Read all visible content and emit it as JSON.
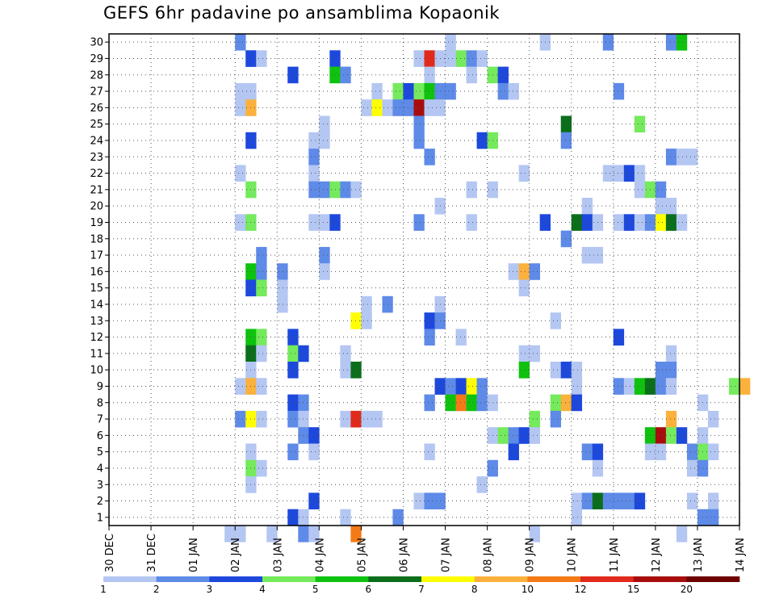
{
  "chart_data": {
    "type": "heatmap",
    "title": "GEFS 6hr padavine po ansamblima Kopaonik",
    "xlabel": "",
    "ylabel": "",
    "x_tick_labels": [
      "30 DEC",
      "31 DEC",
      "01 JAN",
      "02 JAN",
      "03 JAN",
      "04 JAN",
      "05 JAN",
      "06 JAN",
      "07 JAN",
      "08 JAN",
      "09 JAN",
      "10 JAN",
      "11 JAN",
      "12 JAN",
      "13 JAN",
      "14 JAN"
    ],
    "y_tick_labels": [
      "1",
      "2",
      "3",
      "4",
      "5",
      "6",
      "7",
      "8",
      "9",
      "10",
      "11",
      "12",
      "13",
      "14",
      "15",
      "16",
      "17",
      "18",
      "19",
      "20",
      "21",
      "22",
      "23",
      "24",
      "25",
      "26",
      "27",
      "28",
      "29",
      "30"
    ],
    "xlim_steps": [
      0,
      60
    ],
    "ylim": [
      0,
      30
    ],
    "grid": true,
    "step_hours": 6,
    "legend": {
      "position": "bottom",
      "levels": [
        "1",
        "2",
        "3",
        "4",
        "5",
        "6",
        "7",
        "8",
        "10",
        "12",
        "15",
        "20"
      ],
      "colors": [
        "#b4c6f2",
        "#5e8ae8",
        "#1d48dc",
        "#74ea5c",
        "#0ec20e",
        "#0b6e1b",
        "#ffff00",
        "#fbb13c",
        "#f47a17",
        "#e12a1b",
        "#a80d0d",
        "#6e0000"
      ]
    },
    "cells": [
      [
        12,
        30,
        2
      ],
      [
        32,
        30,
        1
      ],
      [
        41,
        30,
        1
      ],
      [
        47,
        30,
        2
      ],
      [
        53,
        30,
        2
      ],
      [
        54,
        30,
        5
      ],
      [
        13,
        29,
        3
      ],
      [
        14,
        29,
        1
      ],
      [
        21,
        29,
        3
      ],
      [
        29,
        29,
        1
      ],
      [
        30,
        29,
        10
      ],
      [
        31,
        29,
        1
      ],
      [
        32,
        29,
        1
      ],
      [
        33,
        29,
        4
      ],
      [
        34,
        29,
        2
      ],
      [
        35,
        29,
        1
      ],
      [
        17,
        28,
        3
      ],
      [
        21,
        28,
        5
      ],
      [
        22,
        28,
        2
      ],
      [
        30,
        28,
        1
      ],
      [
        34,
        28,
        1
      ],
      [
        36,
        28,
        4
      ],
      [
        37,
        28,
        3
      ],
      [
        12,
        27,
        1
      ],
      [
        13,
        27,
        1
      ],
      [
        25,
        27,
        1
      ],
      [
        27,
        27,
        4
      ],
      [
        28,
        27,
        3
      ],
      [
        29,
        27,
        4
      ],
      [
        30,
        27,
        5
      ],
      [
        31,
        27,
        2
      ],
      [
        32,
        27,
        2
      ],
      [
        37,
        27,
        2
      ],
      [
        38,
        27,
        1
      ],
      [
        48,
        27,
        2
      ],
      [
        12,
        26,
        1
      ],
      [
        13,
        26,
        8
      ],
      [
        24,
        26,
        1
      ],
      [
        25,
        26,
        7
      ],
      [
        26,
        26,
        1
      ],
      [
        27,
        26,
        2
      ],
      [
        28,
        26,
        2
      ],
      [
        29,
        26,
        11
      ],
      [
        30,
        26,
        1
      ],
      [
        31,
        26,
        1
      ],
      [
        20,
        25,
        1
      ],
      [
        29,
        25,
        2
      ],
      [
        43,
        25,
        6
      ],
      [
        50,
        25,
        4
      ],
      [
        13,
        24,
        3
      ],
      [
        19,
        24,
        1
      ],
      [
        20,
        24,
        1
      ],
      [
        29,
        24,
        2
      ],
      [
        35,
        24,
        3
      ],
      [
        36,
        24,
        4
      ],
      [
        43,
        24,
        2
      ],
      [
        19,
        23,
        2
      ],
      [
        30,
        23,
        2
      ],
      [
        53,
        23,
        2
      ],
      [
        54,
        23,
        1
      ],
      [
        55,
        23,
        1
      ],
      [
        12,
        22,
        1
      ],
      [
        19,
        22,
        1
      ],
      [
        39,
        22,
        1
      ],
      [
        47,
        22,
        1
      ],
      [
        48,
        22,
        1
      ],
      [
        49,
        22,
        3
      ],
      [
        50,
        22,
        1
      ],
      [
        13,
        21,
        4
      ],
      [
        19,
        21,
        2
      ],
      [
        20,
        21,
        2
      ],
      [
        21,
        21,
        4
      ],
      [
        22,
        21,
        2
      ],
      [
        23,
        21,
        1
      ],
      [
        34,
        21,
        1
      ],
      [
        36,
        21,
        1
      ],
      [
        50,
        21,
        1
      ],
      [
        51,
        21,
        4
      ],
      [
        52,
        21,
        2
      ],
      [
        31,
        20,
        1
      ],
      [
        45,
        20,
        1
      ],
      [
        52,
        20,
        1
      ],
      [
        53,
        20,
        1
      ],
      [
        12,
        19,
        1
      ],
      [
        13,
        19,
        4
      ],
      [
        19,
        19,
        1
      ],
      [
        20,
        19,
        1
      ],
      [
        21,
        19,
        3
      ],
      [
        29,
        19,
        2
      ],
      [
        34,
        19,
        1
      ],
      [
        41,
        19,
        3
      ],
      [
        44,
        19,
        6
      ],
      [
        45,
        19,
        3
      ],
      [
        46,
        19,
        1
      ],
      [
        48,
        19,
        1
      ],
      [
        49,
        19,
        3
      ],
      [
        50,
        19,
        1
      ],
      [
        51,
        19,
        2
      ],
      [
        52,
        19,
        7
      ],
      [
        53,
        19,
        6
      ],
      [
        54,
        19,
        1
      ],
      [
        43,
        18,
        2
      ],
      [
        14,
        17,
        2
      ],
      [
        20,
        17,
        2
      ],
      [
        45,
        17,
        1
      ],
      [
        46,
        17,
        1
      ],
      [
        13,
        16,
        5
      ],
      [
        14,
        16,
        2
      ],
      [
        16,
        16,
        2
      ],
      [
        20,
        16,
        1
      ],
      [
        38,
        16,
        1
      ],
      [
        39,
        16,
        8
      ],
      [
        40,
        16,
        2
      ],
      [
        13,
        15,
        3
      ],
      [
        14,
        15,
        4
      ],
      [
        16,
        15,
        1
      ],
      [
        39,
        15,
        1
      ],
      [
        16,
        14,
        1
      ],
      [
        24,
        14,
        1
      ],
      [
        26,
        14,
        2
      ],
      [
        31,
        14,
        1
      ],
      [
        23,
        13,
        7
      ],
      [
        24,
        13,
        1
      ],
      [
        30,
        13,
        3
      ],
      [
        31,
        13,
        2
      ],
      [
        42,
        13,
        1
      ],
      [
        13,
        12,
        5
      ],
      [
        14,
        12,
        4
      ],
      [
        17,
        12,
        3
      ],
      [
        30,
        12,
        2
      ],
      [
        33,
        12,
        1
      ],
      [
        48,
        12,
        3
      ],
      [
        13,
        11,
        6
      ],
      [
        14,
        11,
        1
      ],
      [
        17,
        11,
        4
      ],
      [
        18,
        11,
        3
      ],
      [
        22,
        11,
        1
      ],
      [
        39,
        11,
        1
      ],
      [
        40,
        11,
        1
      ],
      [
        53,
        11,
        1
      ],
      [
        13,
        10,
        1
      ],
      [
        17,
        10,
        3
      ],
      [
        22,
        10,
        1
      ],
      [
        23,
        10,
        6
      ],
      [
        39,
        10,
        5
      ],
      [
        42,
        10,
        1
      ],
      [
        43,
        10,
        3
      ],
      [
        44,
        10,
        1
      ],
      [
        52,
        10,
        2
      ],
      [
        53,
        10,
        2
      ],
      [
        12,
        9,
        1
      ],
      [
        13,
        9,
        8
      ],
      [
        14,
        9,
        1
      ],
      [
        31,
        9,
        3
      ],
      [
        32,
        9,
        2
      ],
      [
        33,
        9,
        3
      ],
      [
        34,
        9,
        7
      ],
      [
        35,
        9,
        2
      ],
      [
        44,
        9,
        1
      ],
      [
        48,
        9,
        2
      ],
      [
        49,
        9,
        1
      ],
      [
        50,
        9,
        5
      ],
      [
        51,
        9,
        6
      ],
      [
        52,
        9,
        2
      ],
      [
        53,
        9,
        1
      ],
      [
        59,
        9,
        4
      ],
      [
        60,
        9,
        8
      ],
      [
        17,
        8,
        3
      ],
      [
        18,
        8,
        2
      ],
      [
        30,
        8,
        2
      ],
      [
        32,
        8,
        5
      ],
      [
        33,
        8,
        9
      ],
      [
        34,
        8,
        5
      ],
      [
        35,
        8,
        2
      ],
      [
        36,
        8,
        1
      ],
      [
        42,
        8,
        4
      ],
      [
        43,
        8,
        8
      ],
      [
        44,
        8,
        3
      ],
      [
        56,
        8,
        1
      ],
      [
        12,
        7,
        2
      ],
      [
        13,
        7,
        7
      ],
      [
        14,
        7,
        1
      ],
      [
        17,
        7,
        2
      ],
      [
        18,
        7,
        1
      ],
      [
        22,
        7,
        1
      ],
      [
        23,
        7,
        10
      ],
      [
        24,
        7,
        1
      ],
      [
        25,
        7,
        1
      ],
      [
        40,
        7,
        4
      ],
      [
        42,
        7,
        2
      ],
      [
        53,
        7,
        8
      ],
      [
        57,
        7,
        1
      ],
      [
        18,
        6,
        2
      ],
      [
        19,
        6,
        3
      ],
      [
        36,
        6,
        1
      ],
      [
        37,
        6,
        4
      ],
      [
        38,
        6,
        2
      ],
      [
        39,
        6,
        3
      ],
      [
        40,
        6,
        1
      ],
      [
        51,
        6,
        5
      ],
      [
        52,
        6,
        11
      ],
      [
        53,
        6,
        4
      ],
      [
        54,
        6,
        3
      ],
      [
        56,
        6,
        1
      ],
      [
        13,
        5,
        1
      ],
      [
        17,
        5,
        2
      ],
      [
        19,
        5,
        1
      ],
      [
        30,
        5,
        1
      ],
      [
        38,
        5,
        3
      ],
      [
        45,
        5,
        2
      ],
      [
        46,
        5,
        3
      ],
      [
        51,
        5,
        1
      ],
      [
        52,
        5,
        1
      ],
      [
        55,
        5,
        2
      ],
      [
        56,
        5,
        4
      ],
      [
        57,
        5,
        1
      ],
      [
        13,
        4,
        4
      ],
      [
        14,
        4,
        1
      ],
      [
        36,
        4,
        2
      ],
      [
        46,
        4,
        1
      ],
      [
        55,
        4,
        1
      ],
      [
        56,
        4,
        2
      ],
      [
        13,
        3,
        1
      ],
      [
        35,
        3,
        1
      ],
      [
        19,
        2,
        3
      ],
      [
        29,
        2,
        1
      ],
      [
        30,
        2,
        2
      ],
      [
        31,
        2,
        2
      ],
      [
        44,
        2,
        1
      ],
      [
        45,
        2,
        2
      ],
      [
        46,
        2,
        6
      ],
      [
        47,
        2,
        2
      ],
      [
        48,
        2,
        2
      ],
      [
        49,
        2,
        2
      ],
      [
        50,
        2,
        3
      ],
      [
        55,
        2,
        1
      ],
      [
        57,
        2,
        1
      ],
      [
        17,
        1,
        3
      ],
      [
        18,
        1,
        1
      ],
      [
        22,
        1,
        1
      ],
      [
        27,
        1,
        2
      ],
      [
        44,
        1,
        1
      ],
      [
        56,
        1,
        2
      ],
      [
        57,
        1,
        2
      ],
      [
        11,
        0,
        1
      ],
      [
        12,
        0,
        1
      ],
      [
        15,
        0,
        1
      ],
      [
        18,
        0,
        2
      ],
      [
        19,
        0,
        1
      ],
      [
        23,
        0,
        9
      ],
      [
        40,
        0,
        1
      ],
      [
        54,
        0,
        1
      ]
    ]
  }
}
